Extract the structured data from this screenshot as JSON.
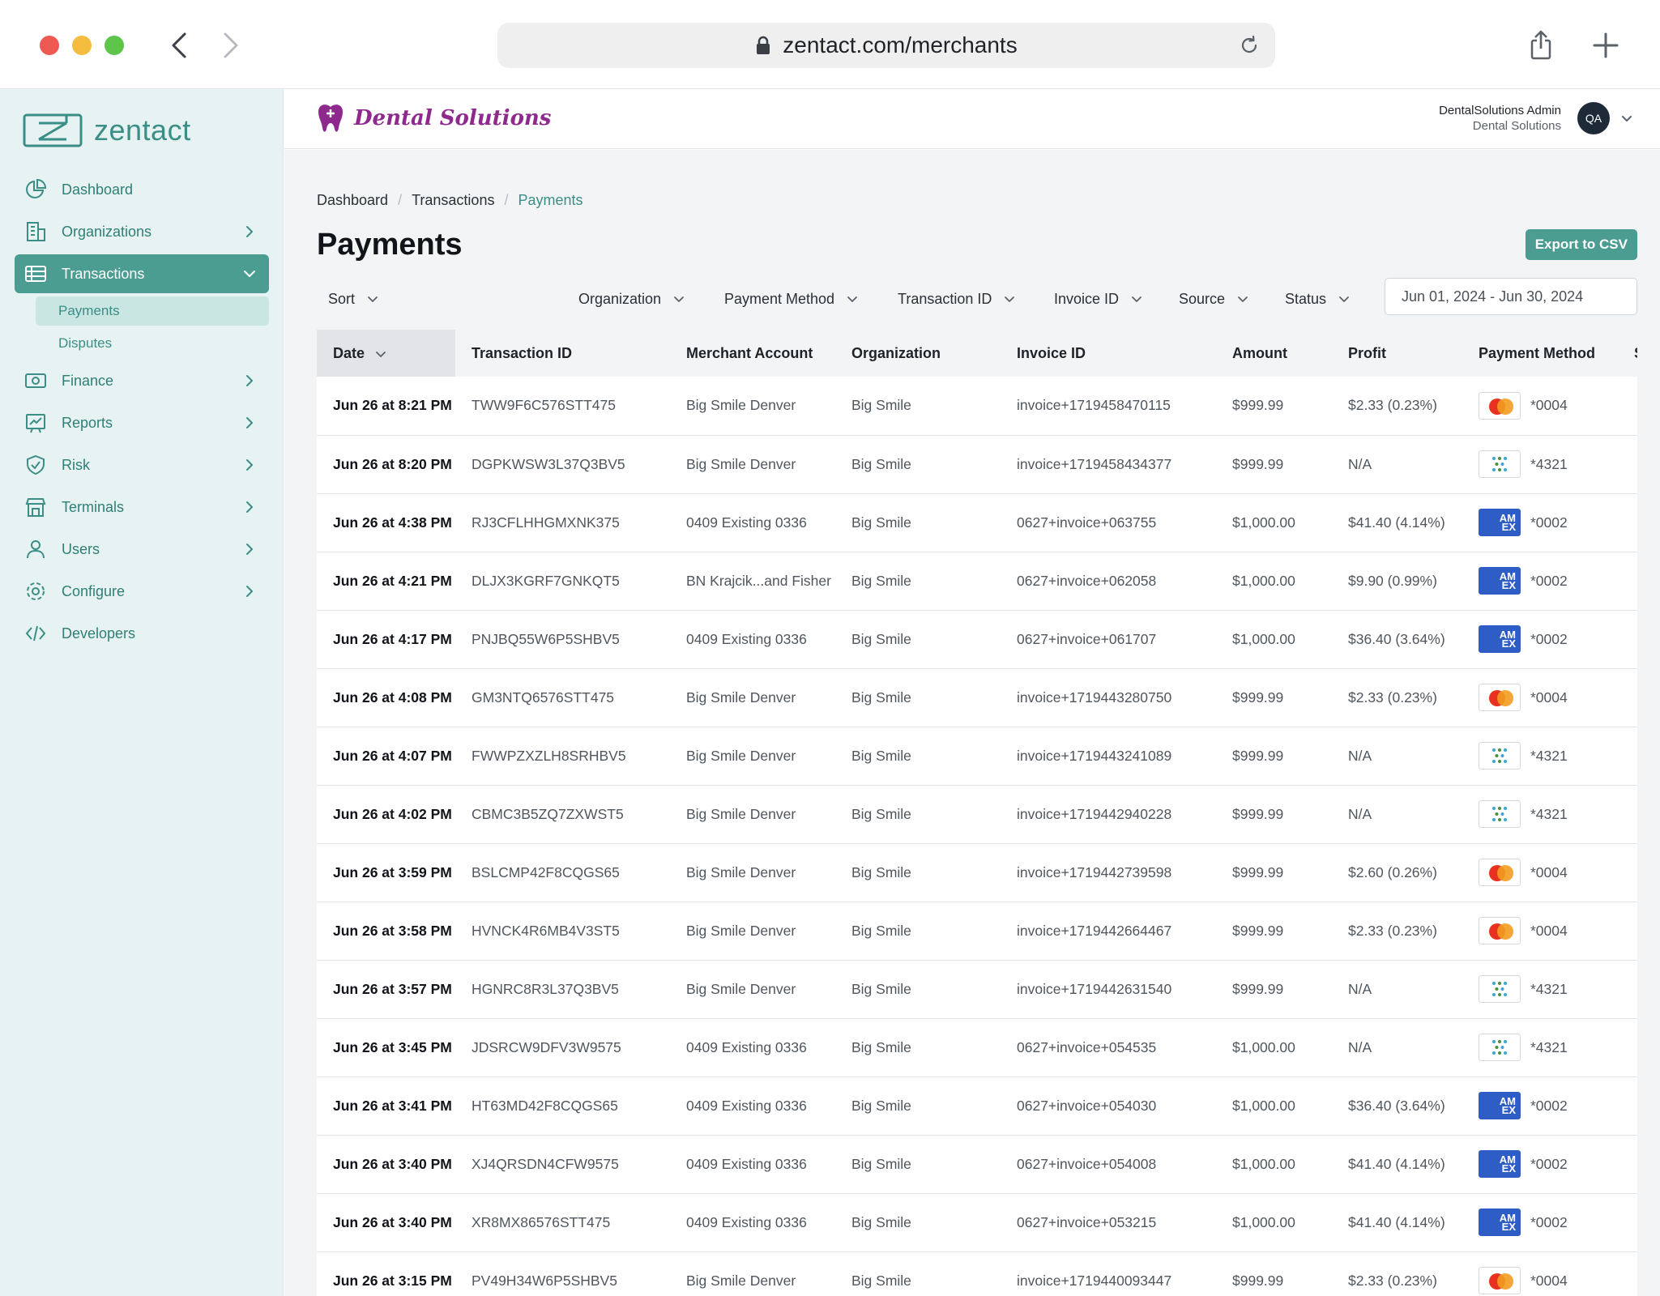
{
  "browser": {
    "url": "zentact.com/merchants"
  },
  "sidebar": {
    "logo_text": "zentact",
    "items": [
      {
        "label": "Dashboard",
        "icon": "pie-chart-icon",
        "has_chevron": false
      },
      {
        "label": "Organizations",
        "icon": "building-icon",
        "has_chevron": true
      },
      {
        "label": "Transactions",
        "icon": "table-icon",
        "has_chevron": true,
        "active": true
      },
      {
        "label": "Finance",
        "icon": "banknote-icon",
        "has_chevron": true
      },
      {
        "label": "Reports",
        "icon": "chart-board-icon",
        "has_chevron": true
      },
      {
        "label": "Risk",
        "icon": "shield-check-icon",
        "has_chevron": true
      },
      {
        "label": "Terminals",
        "icon": "store-icon",
        "has_chevron": true
      },
      {
        "label": "Users",
        "icon": "user-icon",
        "has_chevron": true
      },
      {
        "label": "Configure",
        "icon": "gear-icon",
        "has_chevron": true
      },
      {
        "label": "Developers",
        "icon": "code-icon",
        "has_chevron": false
      }
    ],
    "sub_items": [
      "Payments",
      "Disputes"
    ]
  },
  "header": {
    "brand": "Dental Solutions",
    "user_name": "DentalSolutions Admin",
    "user_org": "Dental Solutions",
    "avatar_initials": "QA"
  },
  "main": {
    "breadcrumb": [
      "Dashboard",
      "Transactions",
      "Payments"
    ],
    "title": "Payments",
    "export_label": "Export to CSV",
    "filters": {
      "sort": "Sort",
      "organization": "Organization",
      "payment_method": "Payment Method",
      "transaction_id": "Transaction ID",
      "invoice_id": "Invoice ID",
      "source": "Source",
      "status": "Status",
      "date_range": "Jun 01, 2024 - Jun 30, 2024"
    },
    "columns": [
      "Date",
      "Transaction ID",
      "Merchant Account",
      "Organization",
      "Invoice ID",
      "Amount",
      "Profit",
      "Payment Method",
      "S"
    ],
    "rows": [
      {
        "date": "Jun 26 at 8:21 PM",
        "txn": "TWW9F6C576STT475",
        "merchant": "Big Smile Denver",
        "org": "Big Smile",
        "invoice": "invoice+1719458470115",
        "amount": "$999.99",
        "profit": "$2.33 (0.23%)",
        "card": "mastercard",
        "last4": "*0004"
      },
      {
        "date": "Jun 26 at 8:20 PM",
        "txn": "DGPKWSW3L37Q3BV5",
        "merchant": "Big Smile Denver",
        "org": "Big Smile",
        "invoice": "invoice+1719458434377",
        "amount": "$999.99",
        "profit": "N/A",
        "card": "dots",
        "last4": "*4321"
      },
      {
        "date": "Jun 26 at 4:38 PM",
        "txn": "RJ3CFLHHGMXNK375",
        "merchant": "0409 Existing 0336",
        "org": "Big Smile",
        "invoice": "0627+invoice+063755",
        "amount": "$1,000.00",
        "profit": "$41.40 (4.14%)",
        "card": "amex",
        "last4": "*0002"
      },
      {
        "date": "Jun 26 at 4:21 PM",
        "txn": "DLJX3KGRF7GNKQT5",
        "merchant": "BN Krajcik...and Fisher",
        "org": "Big Smile",
        "invoice": "0627+invoice+062058",
        "amount": "$1,000.00",
        "profit": "$9.90 (0.99%)",
        "card": "amex",
        "last4": "*0002"
      },
      {
        "date": "Jun 26 at 4:17 PM",
        "txn": "PNJBQ55W6P5SHBV5",
        "merchant": "0409 Existing 0336",
        "org": "Big Smile",
        "invoice": "0627+invoice+061707",
        "amount": "$1,000.00",
        "profit": "$36.40 (3.64%)",
        "card": "amex",
        "last4": "*0002"
      },
      {
        "date": "Jun 26 at 4:08 PM",
        "txn": "GM3NTQ6576STT475",
        "merchant": "Big Smile Denver",
        "org": "Big Smile",
        "invoice": "invoice+1719443280750",
        "amount": "$999.99",
        "profit": "$2.33 (0.23%)",
        "card": "mastercard",
        "last4": "*0004"
      },
      {
        "date": "Jun 26 at 4:07 PM",
        "txn": "FWWPZXZLH8SRHBV5",
        "merchant": "Big Smile Denver",
        "org": "Big Smile",
        "invoice": "invoice+1719443241089",
        "amount": "$999.99",
        "profit": "N/A",
        "card": "dots",
        "last4": "*4321"
      },
      {
        "date": "Jun 26 at 4:02 PM",
        "txn": "CBMC3B5ZQ7ZXWST5",
        "merchant": "Big Smile Denver",
        "org": "Big Smile",
        "invoice": "invoice+1719442940228",
        "amount": "$999.99",
        "profit": "N/A",
        "card": "dots",
        "last4": "*4321"
      },
      {
        "date": "Jun 26 at 3:59 PM",
        "txn": "BSLCMP42F8CQGS65",
        "merchant": "Big Smile Denver",
        "org": "Big Smile",
        "invoice": "invoice+1719442739598",
        "amount": "$999.99",
        "profit": "$2.60 (0.26%)",
        "card": "mastercard",
        "last4": "*0004"
      },
      {
        "date": "Jun 26 at 3:58 PM",
        "txn": "HVNCK4R6MB4V3ST5",
        "merchant": "Big Smile Denver",
        "org": "Big Smile",
        "invoice": "invoice+1719442664467",
        "amount": "$999.99",
        "profit": "$2.33 (0.23%)",
        "card": "mastercard",
        "last4": "*0004"
      },
      {
        "date": "Jun 26 at 3:57 PM",
        "txn": "HGNRC8R3L37Q3BV5",
        "merchant": "Big Smile Denver",
        "org": "Big Smile",
        "invoice": "invoice+1719442631540",
        "amount": "$999.99",
        "profit": "N/A",
        "card": "dots",
        "last4": "*4321"
      },
      {
        "date": "Jun 26 at 3:45 PM",
        "txn": "JDSRCW9DFV3W9575",
        "merchant": "0409 Existing 0336",
        "org": "Big Smile",
        "invoice": "0627+invoice+054535",
        "amount": "$1,000.00",
        "profit": "N/A",
        "card": "dots",
        "last4": "*4321"
      },
      {
        "date": "Jun 26 at 3:41 PM",
        "txn": "HT63MD42F8CQGS65",
        "merchant": "0409 Existing 0336",
        "org": "Big Smile",
        "invoice": "0627+invoice+054030",
        "amount": "$1,000.00",
        "profit": "$36.40 (3.64%)",
        "card": "amex",
        "last4": "*0002"
      },
      {
        "date": "Jun 26 at 3:40 PM",
        "txn": "XJ4QRSDN4CFW9575",
        "merchant": "0409 Existing 0336",
        "org": "Big Smile",
        "invoice": "0627+invoice+054008",
        "amount": "$1,000.00",
        "profit": "$41.40 (4.14%)",
        "card": "amex",
        "last4": "*0002"
      },
      {
        "date": "Jun 26 at 3:40 PM",
        "txn": "XR8MX86576STT475",
        "merchant": "0409 Existing 0336",
        "org": "Big Smile",
        "invoice": "0627+invoice+053215",
        "amount": "$1,000.00",
        "profit": "$41.40 (4.14%)",
        "card": "amex",
        "last4": "*0002"
      },
      {
        "date": "Jun 26 at 3:15 PM",
        "txn": "PV49H34W6P5SHBV5",
        "merchant": "Big Smile Denver",
        "org": "Big Smile",
        "invoice": "invoice+1719440093447",
        "amount": "$999.99",
        "profit": "$2.33 (0.23%)",
        "card": "mastercard",
        "last4": "*0004"
      }
    ]
  },
  "colors": {
    "accent": "#4b9c91",
    "sidebar_bg": "#e6f3f2",
    "brand": "#8e2a8e",
    "amex": "#2e5ec5"
  }
}
